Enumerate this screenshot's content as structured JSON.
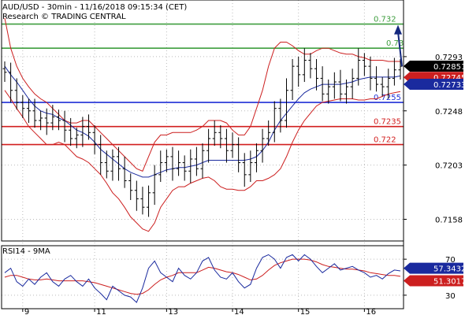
{
  "chart_data": {
    "type": "candlestick",
    "title": "AUD/USD - 30min - 11/16/2018 09:15:34 (CET)",
    "subtitle": "Research © TRADING CENTRAL",
    "x_tick_labels": [
      "9",
      "11",
      "13",
      "14",
      "15",
      "16"
    ],
    "price_axis": {
      "ylim": [
        0.714,
        0.734
      ],
      "tick_labels": [
        "0.7293",
        "0.7248",
        "0.7203",
        "0.7158"
      ],
      "tick_values": [
        0.7293,
        0.7248,
        0.7203,
        0.7158
      ],
      "grid": true,
      "last_price_label": "0.72851",
      "last_price": 0.72851,
      "band_upper_label": "0.72745",
      "band_upper": 0.72745,
      "band_lower_label": "0.72733",
      "band_lower": 0.72733
    },
    "levels": [
      {
        "label": "0.732",
        "value": 0.732,
        "color": "#3f9e3f"
      },
      {
        "label": "0.73",
        "value": 0.73,
        "color": "#3f9e3f"
      },
      {
        "label": "0.7255",
        "value": 0.7255,
        "color": "#1f2fd6"
      },
      {
        "label": "0.7235",
        "value": 0.7235,
        "color": "#d21f1f"
      },
      {
        "label": "0.722",
        "value": 0.722,
        "color": "#d21f1f"
      }
    ],
    "forecast_arrow": {
      "from": 0.7285,
      "to": 0.732,
      "color": "#14287e"
    },
    "close_series": [
      0.728,
      0.7265,
      0.7255,
      0.725,
      0.7248,
      0.724,
      0.7242,
      0.7238,
      0.7243,
      0.724,
      0.7232,
      0.7225,
      0.7228,
      0.7235,
      0.723,
      0.722,
      0.7205,
      0.7198,
      0.721,
      0.72,
      0.719,
      0.7182,
      0.7175,
      0.7168,
      0.718,
      0.7195,
      0.7205,
      0.721,
      0.72,
      0.7205,
      0.7198,
      0.7208,
      0.72,
      0.7215,
      0.7225,
      0.723,
      0.7225,
      0.7215,
      0.722,
      0.7205,
      0.7195,
      0.7205,
      0.7215,
      0.7225,
      0.723,
      0.725,
      0.724,
      0.7265,
      0.7285,
      0.7278,
      0.729,
      0.7283,
      0.7275,
      0.7262,
      0.7268,
      0.7272,
      0.7262,
      0.7268,
      0.7275,
      0.729,
      0.7285,
      0.7275,
      0.727,
      0.7268,
      0.7275,
      0.7282,
      0.7285
    ],
    "bollinger_upper": [
      0.7325,
      0.73,
      0.7285,
      0.7275,
      0.7268,
      0.7262,
      0.7258,
      0.7255,
      0.725,
      0.7245,
      0.724,
      0.7238,
      0.7238,
      0.724,
      0.724,
      0.7235,
      0.723,
      0.7225,
      0.722,
      0.7215,
      0.721,
      0.7205,
      0.72,
      0.7198,
      0.721,
      0.7222,
      0.7228,
      0.7228,
      0.723,
      0.723,
      0.723,
      0.723,
      0.7232,
      0.7235,
      0.724,
      0.724,
      0.724,
      0.7238,
      0.7232,
      0.7228,
      0.7228,
      0.7235,
      0.725,
      0.7265,
      0.7285,
      0.73,
      0.7305,
      0.7305,
      0.7302,
      0.7298,
      0.7295,
      0.7295,
      0.7298,
      0.73,
      0.73,
      0.7298,
      0.7296,
      0.7295,
      0.7295,
      0.7293,
      0.7292,
      0.729,
      0.729,
      0.729,
      0.7289,
      0.7289,
      0.7289
    ],
    "bollinger_lower": [
      0.7265,
      0.7258,
      0.725,
      0.7243,
      0.7235,
      0.723,
      0.7225,
      0.722,
      0.722,
      0.7222,
      0.722,
      0.7215,
      0.721,
      0.7208,
      0.7205,
      0.72,
      0.7195,
      0.7188,
      0.718,
      0.7175,
      0.7168,
      0.716,
      0.7155,
      0.715,
      0.7148,
      0.7155,
      0.7168,
      0.7175,
      0.7182,
      0.7185,
      0.7185,
      0.7188,
      0.719,
      0.7192,
      0.7193,
      0.719,
      0.7185,
      0.7183,
      0.7183,
      0.7182,
      0.7182,
      0.7185,
      0.719,
      0.719,
      0.7192,
      0.7195,
      0.72,
      0.721,
      0.7222,
      0.7232,
      0.724,
      0.7246,
      0.7252,
      0.7255,
      0.7256,
      0.7257,
      0.7258,
      0.7258,
      0.7258,
      0.7257,
      0.7257,
      0.7258,
      0.7258,
      0.726,
      0.7262,
      0.7263,
      0.7264
    ],
    "moving_average": [
      0.7285,
      0.7278,
      0.7272,
      0.7265,
      0.7258,
      0.7252,
      0.7248,
      0.7246,
      0.7245,
      0.7242,
      0.724,
      0.7236,
      0.7232,
      0.723,
      0.7227,
      0.7222,
      0.7216,
      0.7212,
      0.7208,
      0.7204,
      0.72,
      0.7197,
      0.7195,
      0.7193,
      0.7193,
      0.7195,
      0.7197,
      0.7199,
      0.72,
      0.7201,
      0.7201,
      0.7202,
      0.7203,
      0.7205,
      0.7207,
      0.7207,
      0.7207,
      0.7207,
      0.7207,
      0.7207,
      0.7207,
      0.7208,
      0.721,
      0.7215,
      0.7222,
      0.7232,
      0.724,
      0.7246,
      0.7252,
      0.7258,
      0.7263,
      0.7266,
      0.7268,
      0.727,
      0.727,
      0.727,
      0.727,
      0.7271,
      0.7272,
      0.7274,
      0.7275,
      0.7276,
      0.7276,
      0.7276,
      0.7276,
      0.7276,
      0.7277
    ],
    "rsi": {
      "title": "RSI14 - 9MA",
      "tick_labels": [
        "70",
        "30"
      ],
      "tick_values": [
        70,
        30
      ],
      "ylim": [
        15,
        85
      ],
      "rsi_label": "57.3432",
      "rsi_value": 57.3432,
      "ma_label": "51.3017",
      "ma_value": 51.3017,
      "rsi_series": [
        55,
        60,
        45,
        40,
        48,
        42,
        50,
        55,
        45,
        40,
        48,
        52,
        45,
        40,
        48,
        38,
        32,
        25,
        40,
        35,
        30,
        28,
        22,
        38,
        60,
        68,
        55,
        50,
        45,
        60,
        52,
        48,
        55,
        68,
        72,
        58,
        50,
        48,
        55,
        45,
        38,
        42,
        60,
        72,
        75,
        70,
        60,
        72,
        75,
        68,
        75,
        70,
        62,
        55,
        60,
        65,
        58,
        60,
        62,
        58,
        55,
        50,
        52,
        48,
        54,
        58,
        57
      ],
      "ma_series": [
        50,
        52,
        52,
        50,
        48,
        47,
        47,
        48,
        47,
        46,
        46,
        46,
        46,
        46,
        45,
        44,
        42,
        40,
        38,
        36,
        34,
        32,
        31,
        32,
        36,
        42,
        47,
        50,
        52,
        55,
        55,
        55,
        55,
        58,
        61,
        60,
        58,
        56,
        55,
        53,
        50,
        47,
        48,
        52,
        58,
        63,
        66,
        68,
        70,
        70,
        70,
        69,
        67,
        64,
        62,
        61,
        60,
        59,
        59,
        58,
        57,
        55,
        54,
        53,
        52,
        52,
        51
      ]
    },
    "colors": {
      "candle": "#000000",
      "bollinger": "#cc1f1f",
      "ma": "#1a2a9e",
      "rsi_line": "#1a2a9e",
      "rsi_ma": "#cc1f1f",
      "last_price_bg": "#000000",
      "upper_band_bg": "#cc1f1f",
      "lower_band_bg": "#1a2a9e"
    }
  }
}
